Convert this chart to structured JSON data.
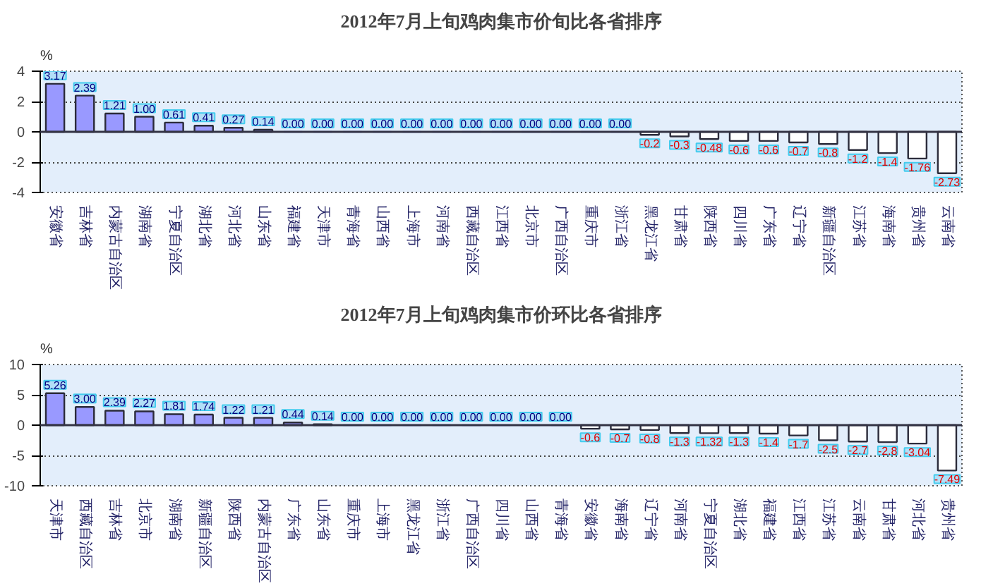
{
  "chart_data": [
    {
      "type": "bar",
      "title": "2012年7月上旬鸡肉集市价旬比各省排序",
      "ylabel": "%",
      "categories": [
        "安徽省",
        "吉林省",
        "内蒙古自治区",
        "湖南省",
        "宁夏自治区",
        "湖北省",
        "河北省",
        "山东省",
        "福建省",
        "天津市",
        "青海省",
        "山西省",
        "上海市",
        "河南省",
        "西藏自治区",
        "江西省",
        "北京市",
        "广西自治区",
        "重庆市",
        "浙江省",
        "黑龙江省",
        "甘肃省",
        "陕西省",
        "四川省",
        "广东省",
        "辽宁省",
        "新疆自治区",
        "江苏省",
        "海南省",
        "贵州省",
        "云南省"
      ],
      "values": [
        3.17,
        2.39,
        1.21,
        1.0,
        0.61,
        0.41,
        0.27,
        0.14,
        0,
        0,
        0,
        0,
        0,
        0,
        0,
        0,
        0,
        0,
        0,
        0,
        -0.2,
        -0.3,
        -0.48,
        -0.6,
        -0.6,
        -0.7,
        -0.8,
        -1.2,
        -1.4,
        -1.76,
        -2.73
      ],
      "value_labels": [
        "3.17",
        "2.39",
        "1.21",
        "1.00",
        "0.61",
        "0.41",
        "0.27",
        "0.14",
        "0.00",
        "0.00",
        "0.00",
        "0.00",
        "0.00",
        "0.00",
        "0.00",
        "0.00",
        "0.00",
        "0.00",
        "0.00",
        "0.00",
        "-0.2",
        "-0.3",
        "-0.48",
        "-0.6",
        "-0.6",
        "-0.7",
        "-0.8",
        "-1.2",
        "-1.4",
        "-1.76",
        "-2.73"
      ],
      "colors": [
        "#9999ff",
        "#9999ff",
        "#9999ff",
        "#9999ff",
        "#9999ff",
        "#9999ff",
        "#9999ff",
        "#9999ff",
        "#9999ff",
        "#9999ff",
        "#9999ff",
        "#9999ff",
        "#9999ff",
        "#9999ff",
        "#9999ff",
        "#9999ff",
        "#9999ff",
        "#9999ff",
        "#9999ff",
        "#9999ff",
        "#ffffff",
        "#ffffff",
        "#ffffff",
        "#ffffff",
        "#ffffff",
        "#ffffff",
        "#ffffff",
        "#ffffff",
        "#ffffff",
        "#ffffff",
        "#ffffff"
      ],
      "ylim": [
        -4,
        4
      ],
      "yticks": [
        -4,
        -2,
        0,
        2,
        4
      ],
      "grid": "y",
      "ref_lines": [
        {
          "axis": "y",
          "value": 0
        }
      ]
    },
    {
      "type": "bar",
      "title": "2012年7月上旬鸡肉集市价环比各省排序",
      "ylabel": "%",
      "categories": [
        "天津市",
        "西藏自治区",
        "吉林省",
        "北京市",
        "湖南省",
        "新疆自治区",
        "陕西省",
        "内蒙古自治区",
        "广东省",
        "山东省",
        "重庆市",
        "上海市",
        "黑龙江省",
        "浙江省",
        "广西自治区",
        "四川省",
        "山西省",
        "青海省",
        "安徽省",
        "海南省",
        "辽宁省",
        "河南省",
        "宁夏自治区",
        "湖北省",
        "福建省",
        "江西省",
        "江苏省",
        "云南省",
        "甘肃省",
        "河北省",
        "贵州省"
      ],
      "values": [
        5.26,
        3.0,
        2.39,
        2.27,
        1.81,
        1.74,
        1.22,
        1.21,
        0.44,
        0.14,
        0,
        0,
        0,
        0,
        0,
        0,
        0,
        0,
        -0.6,
        -0.7,
        -0.8,
        -1.3,
        -1.32,
        -1.3,
        -1.4,
        -1.7,
        -2.5,
        -2.7,
        -2.8,
        -3.04,
        -7.49
      ],
      "value_labels": [
        "5.26",
        "3.00",
        "2.39",
        "2.27",
        "1.81",
        "1.74",
        "1.22",
        "1.21",
        "0.44",
        "0.14",
        "0.00",
        "0.00",
        "0.00",
        "0.00",
        "0.00",
        "0.00",
        "0.00",
        "0.00",
        "-0.6",
        "-0.7",
        "-0.8",
        "-1.3",
        "-1.32",
        "-1.3",
        "-1.4",
        "-1.7",
        "-2.5",
        "-2.7",
        "-2.8",
        "-3.04",
        "-7.49"
      ],
      "colors": [
        "#9999ff",
        "#9999ff",
        "#9999ff",
        "#9999ff",
        "#9999ff",
        "#9999ff",
        "#9999ff",
        "#9999ff",
        "#9999ff",
        "#9999ff",
        "#9999ff",
        "#9999ff",
        "#9999ff",
        "#9999ff",
        "#9999ff",
        "#9999ff",
        "#9999ff",
        "#9999ff",
        "#ffffff",
        "#ffffff",
        "#ffffff",
        "#ffffff",
        "#ffffff",
        "#ffffff",
        "#ffffff",
        "#ffffff",
        "#ffffff",
        "#ffffff",
        "#ffffff",
        "#ffffff",
        "#ffffff"
      ],
      "ylim": [
        -10,
        10
      ],
      "yticks": [
        -10,
        -5,
        0,
        5,
        10
      ],
      "grid": "y",
      "ref_lines": [
        {
          "axis": "y",
          "value": 0
        }
      ]
    }
  ]
}
